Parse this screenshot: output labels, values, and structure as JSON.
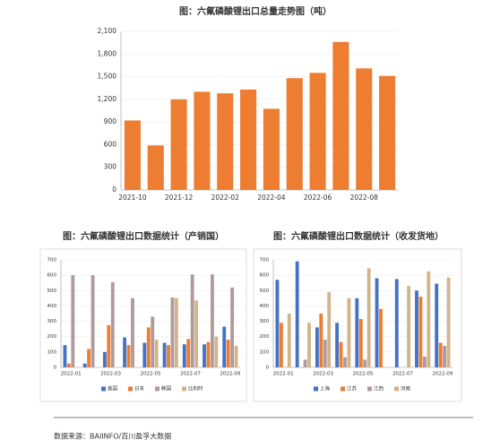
{
  "chart_data": [
    {
      "type": "bar",
      "title": "图：六氟磷酸锂出口总量走势图（吨）",
      "categories": [
        "2021-10",
        null,
        "2021-12",
        null,
        "2022-02",
        null,
        "2022-04",
        null,
        "2022-06",
        null,
        "2022-08",
        null
      ],
      "values": [
        920,
        590,
        1200,
        1300,
        1280,
        1330,
        1075,
        1480,
        1550,
        1960,
        1610,
        1510
      ],
      "color": "#ed7d31",
      "ylim": [
        0,
        2100
      ],
      "yticks": [
        0,
        300,
        600,
        900,
        {
          "value": 1200,
          "label": "1,200"
        },
        {
          "value": 1500,
          "label": "1,500"
        },
        {
          "value": 1800,
          "label": "1,800"
        },
        {
          "value": 2100,
          "label": "2,100"
        }
      ],
      "grid": true
    },
    {
      "type": "bar",
      "title": "图：六氟磷酸锂出口数据统计（产销国）",
      "categories": [
        "2022-01",
        null,
        "2022-03",
        null,
        "2022-05",
        null,
        "2022-07",
        null,
        "2022-09"
      ],
      "series": [
        {
          "name": "美国",
          "color": "#4472c4",
          "values": [
            145,
            25,
            100,
            195,
            160,
            160,
            150,
            150,
            265
          ]
        },
        {
          "name": "日本",
          "color": "#ed7d31",
          "values": [
            25,
            120,
            275,
            145,
            260,
            145,
            185,
            165,
            180
          ]
        },
        {
          "name": "韩国",
          "color": "#b09a9a",
          "values": [
            600,
            600,
            555,
            450,
            330,
            455,
            605,
            605,
            520
          ]
        },
        {
          "name": "比利时",
          "color": "#d2b48c",
          "values": [
            0,
            0,
            0,
            0,
            180,
            450,
            435,
            200,
            140
          ]
        }
      ],
      "ylim": [
        0,
        700
      ],
      "yticks": [
        0,
        100,
        200,
        300,
        400,
        500,
        600,
        700
      ],
      "grid": true
    },
    {
      "type": "bar",
      "title": "图：六氟磷酸锂出口数据统计（收发货地）",
      "categories": [
        "2022-01",
        null,
        "2022-03",
        null,
        "2022-05",
        null,
        "2022-07",
        null,
        "2022-09"
      ],
      "series": [
        {
          "name": "上海",
          "color": "#4472c4",
          "values": [
            570,
            690,
            260,
            290,
            450,
            580,
            575,
            500,
            545
          ]
        },
        {
          "name": "江苏",
          "color": "#ed7d31",
          "values": [
            290,
            0,
            350,
            165,
            315,
            380,
            0,
            460,
            160
          ]
        },
        {
          "name": "江西",
          "color": "#b09a9a",
          "values": [
            0,
            50,
            180,
            65,
            50,
            0,
            0,
            70,
            140
          ]
        },
        {
          "name": "河南",
          "color": "#d2b48c",
          "values": [
            350,
            290,
            490,
            450,
            645,
            0,
            530,
            625,
            585
          ]
        }
      ],
      "ylim": [
        0,
        700
      ],
      "yticks": [
        0,
        100,
        200,
        300,
        400,
        500,
        600,
        700
      ],
      "grid": true
    }
  ],
  "footer": "数据来源：BAIINFO/百川盈孚大数据"
}
